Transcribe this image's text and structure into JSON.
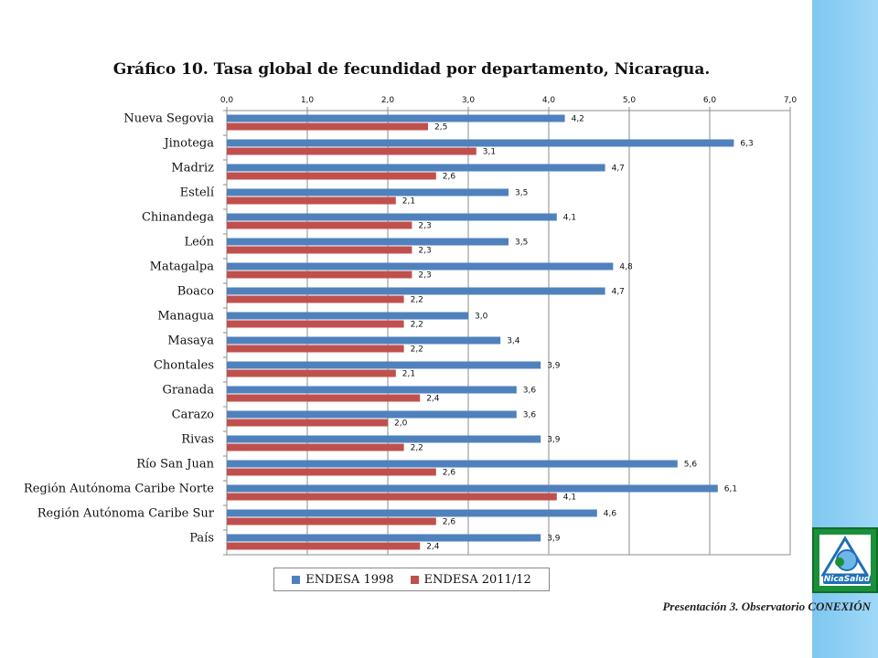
{
  "chart_data": {
    "type": "bar",
    "orientation": "horizontal",
    "title": "Gráfico 10. Tasa global de fecundidad por departamento, Nicaragua.",
    "categories": [
      "Nueva Segovia",
      "Jinotega",
      "Madriz",
      "Estelí",
      "Chinandega",
      "León",
      "Matagalpa",
      "Boaco",
      "Managua",
      "Masaya",
      "Chontales",
      "Granada",
      "Carazo",
      "Rivas",
      "Río San Juan",
      "Región Autónoma Caribe Norte",
      "Región Autónoma Caribe Sur",
      "País"
    ],
    "series": [
      {
        "name": "ENDESA 1998",
        "color": "#4f81bd",
        "values": [
          4.2,
          6.3,
          4.7,
          3.5,
          4.1,
          3.5,
          4.8,
          4.7,
          3.0,
          3.4,
          3.9,
          3.6,
          3.6,
          3.9,
          5.6,
          6.1,
          4.6,
          3.9
        ],
        "labels": [
          "4,2",
          "6,3",
          "4,7",
          "3,5",
          "4,1",
          "3,5",
          "4,8",
          "4,7",
          "3,0",
          "3,4",
          "3,9",
          "3,6",
          "3,6",
          "3,9",
          "5,6",
          "6,1",
          "4,6",
          "3,9"
        ]
      },
      {
        "name": "ENDESA 2011/12",
        "color": "#c0504d",
        "values": [
          2.5,
          3.1,
          2.6,
          2.1,
          2.3,
          2.3,
          2.3,
          2.2,
          2.2,
          2.2,
          2.1,
          2.4,
          2.0,
          2.2,
          2.6,
          4.1,
          2.6,
          2.4
        ],
        "labels": [
          "2,5",
          "3,1",
          "2,6",
          "2,1",
          "2,3",
          "2,3",
          "2,3",
          "2,2",
          "2,2",
          "2,2",
          "2,1",
          "2,4",
          "2,0",
          "2,2",
          "2,6",
          "4,1",
          "2,6",
          "2,4"
        ]
      }
    ],
    "xlim": [
      0,
      7
    ],
    "x_ticks": [
      0,
      1,
      2,
      3,
      4,
      5,
      6,
      7
    ],
    "x_tick_labels": [
      "0,0",
      "1,0",
      "2,0",
      "3,0",
      "4,0",
      "5,0",
      "6,0",
      "7,0"
    ],
    "x_axis_position": "top",
    "grid": true,
    "legend_position": "bottom"
  },
  "legend": {
    "item1": "ENDESA 1998",
    "item2": "ENDESA 2011/12",
    "color1": "#4f81bd",
    "color2": "#c0504d"
  },
  "footer": {
    "note": "Presentación 3. Observatorio CONEXIÓN"
  },
  "logo": {
    "name": "nicasalud-logo-icon",
    "text": "NicaSalud"
  }
}
